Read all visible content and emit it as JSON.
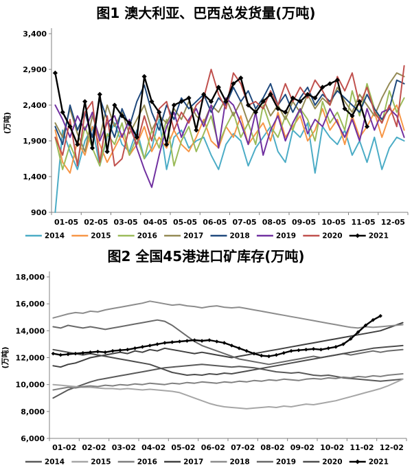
{
  "chart_data": [
    {
      "type": "line",
      "title": "图1 澳大利亚、巴西总发货量(万吨)",
      "ylabel": "(万吨)",
      "ylim": [
        900,
        3400
      ],
      "ytick_labels": [
        "900",
        "1,400",
        "1,900",
        "2,400",
        "2,900",
        "3,400"
      ],
      "x_tick_labels": [
        "01-05",
        "02-05",
        "03-05",
        "04-05",
        "05-05",
        "06-05",
        "07-05",
        "08-05",
        "09-05",
        "10-05",
        "11-05",
        "12-05"
      ],
      "points_per_series": 48,
      "grid": false,
      "legend_position": "bottom",
      "series": [
        {
          "name": "2014",
          "color": "#4BACC6",
          "marker": false,
          "values": [
            900,
            2050,
            1750,
            1500,
            1900,
            2100,
            1550,
            1950,
            2150,
            1850,
            1750,
            2050,
            1650,
            1800,
            2200,
            1500,
            1950,
            2050,
            1800,
            1900,
            1950,
            1700,
            1500,
            1850,
            2000,
            1900,
            1550,
            1800,
            1950,
            2100,
            1750,
            1600,
            2050,
            1950,
            2150,
            1450,
            2100,
            1950,
            1850,
            2050,
            1700,
            1900,
            1600,
            1950,
            1500,
            1800,
            1950,
            1900
          ]
        },
        {
          "name": "2015",
          "color": "#F79646",
          "marker": false,
          "values": [
            2050,
            1600,
            1450,
            1900,
            1700,
            2100,
            1850,
            1600,
            1800,
            2000,
            1700,
            1850,
            2100,
            1750,
            1950,
            1800,
            2050,
            1850,
            1750,
            1950,
            2200,
            1900,
            1800,
            2100,
            1950,
            2250,
            1850,
            2000,
            2150,
            1900,
            2300,
            1950,
            2100,
            2250,
            1900,
            2050,
            2350,
            2050,
            2200,
            1850,
            2250,
            1950,
            2100,
            2300,
            1950,
            2250,
            2400,
            2050
          ]
        },
        {
          "name": "2016",
          "color": "#9BBB59",
          "marker": false,
          "values": [
            1950,
            1500,
            1850,
            1600,
            2100,
            1800,
            1550,
            2000,
            1850,
            2150,
            1700,
            1950,
            1650,
            2050,
            1800,
            2200,
            1550,
            1900,
            2100,
            1750,
            2000,
            2250,
            1850,
            2100,
            2300,
            1950,
            2150,
            1850,
            2400,
            2100,
            1950,
            2250,
            2050,
            2350,
            2200,
            1900,
            2450,
            2150,
            2300,
            2050,
            2600,
            2250,
            2700,
            2350,
            2150,
            2600,
            2300,
            2500
          ]
        },
        {
          "name": "2017",
          "color": "#948A54",
          "marker": false,
          "values": [
            2150,
            1950,
            2350,
            2000,
            1750,
            2250,
            1950,
            2400,
            2100,
            2300,
            2000,
            2200,
            2400,
            2050,
            2250,
            2150,
            2350,
            2200,
            2450,
            2250,
            2150,
            2400,
            2300,
            2500,
            2250,
            2450,
            2150,
            2350,
            2500,
            2250,
            2400,
            2200,
            2450,
            2300,
            2550,
            2350,
            2500,
            2400,
            2650,
            2450,
            2300,
            2550,
            2400,
            2250,
            2500,
            2700,
            2850,
            2800
          ]
        },
        {
          "name": "2018",
          "color": "#1F497D",
          "marker": false,
          "values": [
            2100,
            1850,
            2400,
            2050,
            2300,
            1950,
            2500,
            2200,
            1950,
            2350,
            2100,
            2450,
            2680,
            2300,
            2050,
            2400,
            2200,
            2500,
            2350,
            2450,
            2550,
            2300,
            2500,
            2400,
            2650,
            2450,
            2600,
            2350,
            2500,
            2700,
            2400,
            2550,
            2300,
            2500,
            2650,
            2400,
            2550,
            2450,
            2600,
            2500,
            2400,
            2300,
            2550,
            2350,
            2200,
            2350,
            2750,
            2700
          ]
        },
        {
          "name": "2019",
          "color": "#7030A0",
          "marker": false,
          "values": [
            2400,
            2200,
            1950,
            2250,
            2050,
            2300,
            1900,
            2150,
            2250,
            1950,
            2200,
            1800,
            1500,
            1250,
            1700,
            2100,
            2300,
            1950,
            2200,
            2350,
            2100,
            2400,
            1800,
            2500,
            2400,
            2150,
            1850,
            2300,
            1700,
            2050,
            2250,
            1900,
            2150,
            2350,
            2000,
            2200,
            2100,
            2350,
            2150,
            1950,
            2200,
            1900,
            2350,
            2050,
            2300,
            2350,
            2250,
            1950
          ]
        },
        {
          "name": "2020",
          "color": "#C0504D",
          "marker": false,
          "values": [
            1950,
            1700,
            2200,
            1550,
            2300,
            2450,
            1600,
            2250,
            1550,
            1650,
            2100,
            1850,
            2250,
            1900,
            2350,
            2450,
            2050,
            2300,
            2150,
            2400,
            2500,
            2900,
            2550,
            2350,
            2850,
            2700,
            2400,
            2450,
            2350,
            2600,
            2400,
            2700,
            2450,
            2650,
            2500,
            2750,
            2600,
            2400,
            2800,
            2600,
            2850,
            2400,
            2650,
            2300,
            2150,
            2400,
            2100,
            2950
          ]
        },
        {
          "name": "2021",
          "color": "#000000",
          "marker": "diamond",
          "values": [
            2850,
            2300,
            2100,
            1850,
            2450,
            1800,
            2550,
            1750,
            2400,
            2250,
            2150,
            1950,
            2800,
            2450,
            2300,
            1850,
            2400,
            2450,
            2500,
            2050,
            2550,
            2450,
            2650,
            2450,
            2700,
            2780,
            2400,
            2300,
            2450,
            2550,
            2350,
            2300,
            2500,
            2450,
            2550,
            2500,
            2650,
            2700,
            2750,
            2350,
            2250,
            2450,
            2100,
            null,
            null,
            null,
            null,
            null
          ]
        }
      ]
    },
    {
      "type": "line",
      "title": "图2 全国45港进口矿库存(万吨)",
      "ylabel": "(万吨)",
      "ylim": [
        6000,
        18000
      ],
      "ytick_labels": [
        "6,000",
        "8,000",
        "10,000",
        "12,000",
        "14,000",
        "16,000",
        "18,000"
      ],
      "x_tick_labels": [
        "01-02",
        "02-02",
        "03-02",
        "04-02",
        "05-02",
        "06-02",
        "07-02",
        "08-02",
        "09-02",
        "10-02",
        "11-02",
        "12-02"
      ],
      "points_per_series": 48,
      "grid": false,
      "legend_position": "bottom",
      "series": [
        {
          "name": "2014",
          "color": "#595959",
          "marker": false,
          "values": [
            9000,
            9300,
            9600,
            9800,
            10000,
            10200,
            10350,
            10450,
            10550,
            10650,
            10750,
            10850,
            10950,
            11050,
            11150,
            11250,
            11300,
            11350,
            11400,
            11450,
            11500,
            11450,
            11400,
            11350,
            11300,
            11350,
            11300,
            11250,
            11150,
            11050,
            10950,
            10900,
            10850,
            10900,
            10800,
            10700,
            10650,
            10700,
            10600,
            10500,
            10450,
            10400,
            10350,
            10300,
            10250,
            10300,
            10350,
            10400
          ]
        },
        {
          "name": "2015",
          "color": "#A6A6A6",
          "marker": false,
          "values": [
            10000,
            9950,
            9900,
            9850,
            9800,
            9800,
            9750,
            9700,
            9700,
            9650,
            9700,
            9650,
            9600,
            9650,
            9600,
            9550,
            9500,
            9400,
            9200,
            9000,
            8800,
            8600,
            8450,
            8350,
            8300,
            8250,
            8200,
            8250,
            8300,
            8350,
            8300,
            8400,
            8350,
            8450,
            8550,
            8500,
            8600,
            8700,
            8800,
            8950,
            9100,
            9250,
            9400,
            9550,
            9700,
            9900,
            10150,
            10400
          ]
        },
        {
          "name": "2016",
          "color": "#7F7F7F",
          "marker": false,
          "values": [
            9600,
            9700,
            9800,
            9750,
            9850,
            9900,
            9850,
            9950,
            9900,
            10000,
            9950,
            10050,
            10000,
            10100,
            10050,
            10000,
            10100,
            10050,
            10150,
            10100,
            10200,
            10150,
            10100,
            10200,
            10150,
            10250,
            10200,
            10300,
            10250,
            10350,
            10300,
            10400,
            10350,
            10300,
            10400,
            10450,
            10400,
            10500,
            10450,
            10550,
            10500,
            10600,
            10550,
            10650,
            10600,
            10700,
            10750,
            10800
          ]
        },
        {
          "name": "2017",
          "color": "#404040",
          "marker": false,
          "values": [
            11400,
            11300,
            11500,
            11600,
            11800,
            12000,
            12100,
            12200,
            12300,
            12400,
            12300,
            12500,
            12400,
            12600,
            12500,
            12700,
            12600,
            12500,
            12400,
            12300,
            12400,
            12300,
            12200,
            12100,
            12000,
            12100,
            12200,
            12300,
            12400,
            12500,
            12600,
            12700,
            12800,
            12900,
            13000,
            13100,
            13200,
            13300,
            13400,
            13500,
            13600,
            13700,
            13800,
            13900,
            14000,
            14200,
            14400,
            14600
          ]
        },
        {
          "name": "2018",
          "color": "#8C8C8C",
          "marker": false,
          "values": [
            14950,
            15100,
            15250,
            15350,
            15300,
            15450,
            15400,
            15550,
            15650,
            15750,
            15850,
            15950,
            16050,
            16200,
            16100,
            16000,
            15900,
            15950,
            15850,
            15800,
            15700,
            15800,
            15850,
            15750,
            15700,
            15750,
            15650,
            15550,
            15450,
            15350,
            15250,
            15150,
            15050,
            14950,
            14850,
            14750,
            14650,
            14550,
            14450,
            14350,
            14250,
            14200,
            14300,
            14250,
            14300,
            14350,
            14400,
            14450
          ]
        },
        {
          "name": "2019",
          "color": "#696969",
          "marker": false,
          "values": [
            14300,
            14200,
            14400,
            14300,
            14200,
            14300,
            14200,
            14100,
            14200,
            14300,
            14400,
            14500,
            14600,
            14700,
            14800,
            14700,
            14400,
            14000,
            13600,
            13200,
            12900,
            12700,
            12500,
            12300,
            12100,
            11900,
            11800,
            11700,
            11600,
            11500,
            11600,
            11700,
            11800,
            11900,
            12000,
            12100,
            12000,
            12100,
            12200,
            12300,
            12200,
            12300,
            12400,
            12500,
            12400,
            12500,
            12550,
            12600
          ]
        },
        {
          "name": "2020",
          "color": "#4D4D4D",
          "marker": false,
          "values": [
            12600,
            12500,
            12400,
            12300,
            12200,
            12300,
            12200,
            12100,
            12000,
            11900,
            11800,
            11700,
            11600,
            11500,
            11300,
            11100,
            10900,
            10800,
            10700,
            10750,
            10700,
            10800,
            10750,
            10850,
            10800,
            10900,
            11000,
            11100,
            11200,
            11300,
            11400,
            11500,
            11600,
            11700,
            11800,
            11900,
            12000,
            12100,
            12200,
            12300,
            12400,
            12500,
            12600,
            12700,
            12750,
            12800,
            12850,
            12900
          ]
        },
        {
          "name": "2021",
          "color": "#000000",
          "marker": "diamond",
          "values": [
            12300,
            12200,
            12250,
            12300,
            12350,
            12400,
            12450,
            12400,
            12500,
            12550,
            12600,
            12700,
            12800,
            12900,
            13000,
            13100,
            13150,
            13200,
            13250,
            13300,
            13250,
            13300,
            13200,
            13100,
            12900,
            12700,
            12500,
            12300,
            12150,
            12100,
            12200,
            12350,
            12500,
            12550,
            12600,
            12650,
            12600,
            12700,
            12800,
            13000,
            13400,
            13900,
            14400,
            14800,
            15100,
            null,
            null,
            null
          ]
        }
      ]
    }
  ]
}
